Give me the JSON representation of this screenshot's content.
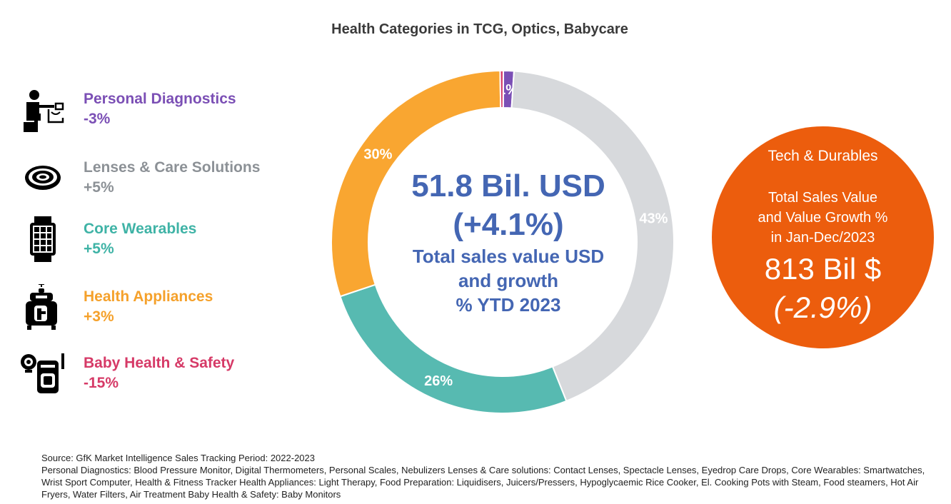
{
  "title": "Health Categories in TCG, Optics, Babycare",
  "legend": [
    {
      "label": "Personal Diagnostics",
      "growth": "-3%",
      "color": "#7b4fb5",
      "icon": "blood-pressure-person-icon"
    },
    {
      "label": "Lenses & Care Solutions",
      "growth": "+5%",
      "color": "#8c9196",
      "icon": "eye-lens-icon"
    },
    {
      "label": "Core Wearables",
      "growth": "+5%",
      "color": "#3fb3a6",
      "icon": "smartwatch-icon"
    },
    {
      "label": "Health Appliances",
      "growth": "+3%",
      "color": "#f5a12b",
      "icon": "humidifier-appliance-icon"
    },
    {
      "label": "Baby Health & Safety",
      "growth": "-15%",
      "color": "#d63a67",
      "icon": "baby-monitor-icon"
    }
  ],
  "chart_data": {
    "type": "pie",
    "donut": true,
    "slices": [
      {
        "category": "Personal Diagnostics",
        "value": 1,
        "label": "1%",
        "color": "#7b4fb5"
      },
      {
        "category": "Lenses & Care Solutions",
        "value": 43,
        "label": "43%",
        "color": "#d7d9dc"
      },
      {
        "category": "Core Wearables",
        "value": 26,
        "label": "26%",
        "color": "#57bab1"
      },
      {
        "category": "Health Appliances",
        "value": 30,
        "label": "30%",
        "color": "#f9a631"
      },
      {
        "category": "Baby Health & Safety",
        "value": 0.3,
        "label": "",
        "color": "#d63a67"
      }
    ]
  },
  "center": {
    "value": "51.8 Bil. USD",
    "growth": "(+4.1%)",
    "lines": [
      "Total sales value USD",
      "and growth",
      "% YTD 2023"
    ],
    "color": "#4466b3"
  },
  "tech_durables": {
    "title": "Tech & Durables",
    "sub_lines": [
      "Total Sales Value",
      "and Value Growth %",
      "in Jan-Dec/2023"
    ],
    "value": "813 Bil $",
    "growth": "(-2.9%)",
    "color": "#ec5d0d"
  },
  "source": {
    "line1": "Source: GfK Market Intelligence Sales Tracking Period: 2022-2023",
    "line2": "Personal Diagnostics: Blood Pressure Monitor, Digital Thermometers, Personal Scales, Nebulizers Lenses & Care solutions: Contact Lenses, Spectacle Lenses, Eyedrop Care Drops, Core Wearables: Smartwatches, Wrist Sport Computer, Health & Fitness Tracker Health Appliances: Light Therapy, Food Preparation: Liquidisers, Juicers/Pressers, Hypoglycaemic Rice Cooker, El. Cooking Pots with Steam, Food steamers, Hot Air Fryers, Water Filters, Air Treatment Baby Health & Safety: Baby Monitors"
  }
}
